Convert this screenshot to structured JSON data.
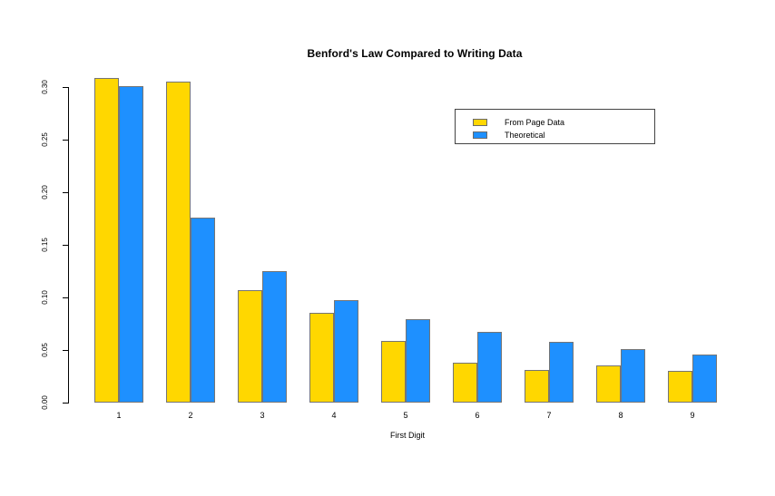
{
  "chart_data": {
    "type": "bar",
    "title": "Benford's Law Compared to Writing Data",
    "xlabel": "First Digit",
    "ylabel": "",
    "categories": [
      "1",
      "2",
      "3",
      "4",
      "5",
      "6",
      "7",
      "8",
      "9"
    ],
    "series": [
      {
        "name": "From Page Data",
        "color": "#FFD700",
        "values": [
          0.309,
          0.305,
          0.107,
          0.085,
          0.059,
          0.038,
          0.031,
          0.035,
          0.03
        ]
      },
      {
        "name": "Theoretical",
        "color": "#1E90FF",
        "values": [
          0.301,
          0.176,
          0.125,
          0.097,
          0.079,
          0.067,
          0.058,
          0.051,
          0.046
        ]
      }
    ],
    "ylim": [
      0,
      0.3
    ],
    "ytick_step": 0.05,
    "ytick_labels": [
      "0.00",
      "0.05",
      "0.10",
      "0.15",
      "0.20",
      "0.25",
      "0.30"
    ],
    "grid": false,
    "legend_position": "upper-right-inside",
    "bar_border_color": "#757575",
    "axis_color": "#000000"
  }
}
